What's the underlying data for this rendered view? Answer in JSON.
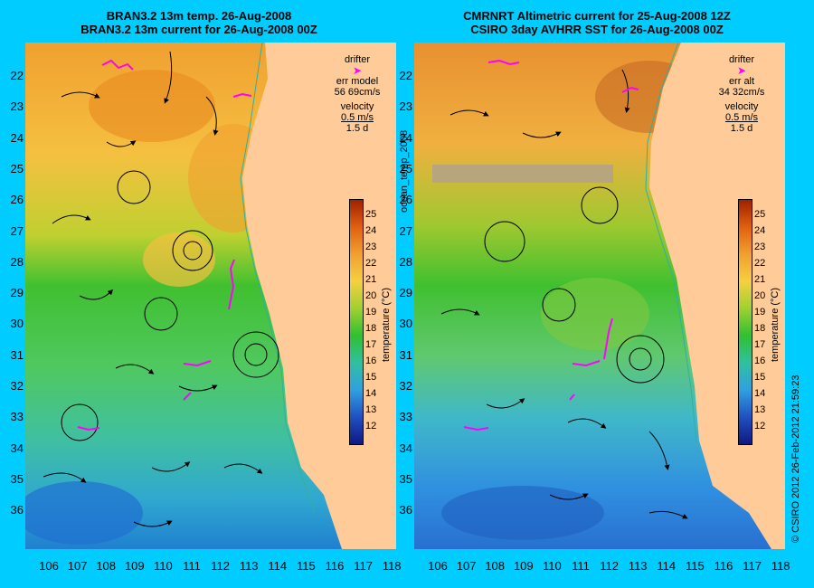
{
  "left": {
    "title_line1": "BRAN3.2 13m temp. 26-Aug-2008",
    "title_line2": "BRAN3.2 13m current for 26-Aug-2008 00Z",
    "legend": {
      "drifter": "drifter",
      "err_label": "err model",
      "err_value": "56 69cm/s",
      "velocity": "velocity",
      "speed": "0.5 m/s",
      "duration": "1.5 d"
    }
  },
  "right": {
    "title_line1": "CMRNRT Altimetric current for 25-Aug-2008 12Z",
    "title_line2": "CSIRO 3day AVHRR SST for 26-Aug-2008 00Z",
    "legend": {
      "drifter": "drifter",
      "err_label": "err alt",
      "err_value": "34 32cm/s",
      "velocity": "velocity",
      "speed": "0.5 m/s",
      "duration": "1.5 d"
    }
  },
  "lat_ticks": [
    "22",
    "23",
    "24",
    "25",
    "26",
    "27",
    "28",
    "29",
    "30",
    "31",
    "32",
    "33",
    "34",
    "35",
    "36"
  ],
  "lon_ticks": [
    "106",
    "107",
    "108",
    "109",
    "110",
    "111",
    "112",
    "113",
    "114",
    "115",
    "116",
    "117",
    "118"
  ],
  "colorbar": {
    "labels": [
      "25",
      "24",
      "23",
      "22",
      "21",
      "20",
      "19",
      "18",
      "17",
      "16",
      "15",
      "14",
      "13",
      "12"
    ],
    "title": "temperature (°C)"
  },
  "side_label": "ocean_temp_2008",
  "copyright": "© CSIRO 2012   26-Feb-2012 21:59:23",
  "colors": {
    "background": "#00ccff",
    "land": "#ffcc99",
    "warm": "#f0a030",
    "green": "#30c030",
    "cool": "#30c0c0",
    "cold": "#2060d0",
    "drifter": "#ff00ff"
  }
}
